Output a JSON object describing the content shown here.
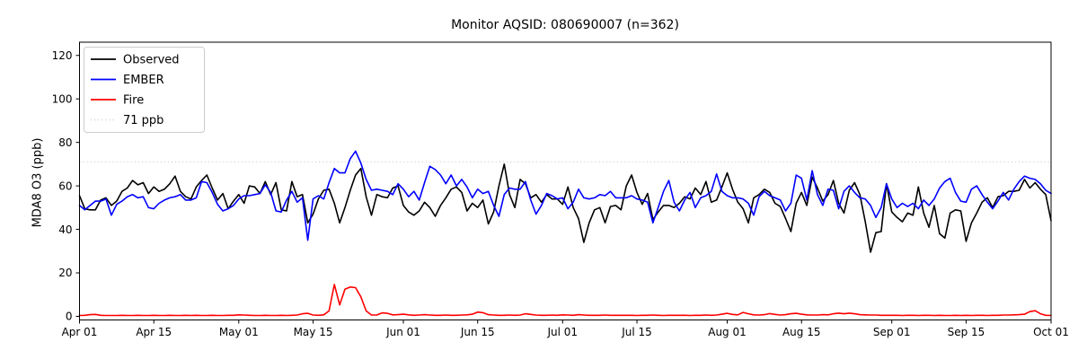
{
  "title": "Monitor AQSID: 080690007 (n=362)",
  "ylabel": "MDA8 O3 (ppb)",
  "chart_data": {
    "type": "line",
    "title": "Monitor AQSID: 080690007 (n=362)",
    "xlabel": "",
    "ylabel": "MDA8 O3 (ppb)",
    "x_unit": "date (daily, Apr 01 - Oct 01)",
    "n_days": 184,
    "ylim": [
      -2,
      126.3
    ],
    "yticks": [
      0,
      20,
      40,
      60,
      80,
      100,
      120
    ],
    "x_tick_labels": [
      "Apr 01",
      "Apr 15",
      "May 01",
      "May 15",
      "Jun 01",
      "Jun 15",
      "Jul 01",
      "Jul 15",
      "Aug 01",
      "Aug 15",
      "Sep 01",
      "Sep 15",
      "Oct 01"
    ],
    "x_tick_day_index": [
      0,
      14,
      30,
      44,
      61,
      75,
      91,
      105,
      122,
      136,
      153,
      167,
      183
    ],
    "grid": false,
    "legend_position": "upper left",
    "threshold": {
      "value": 71,
      "label": "71 ppb",
      "color": "#d3d3d3",
      "style": "dotted"
    },
    "series": [
      {
        "name": "Observed",
        "color": "#000000",
        "style": "solid",
        "values": [
          55.5,
          49.5,
          49,
          49,
          53.5,
          54.5,
          51,
          53,
          57.5,
          59,
          62.5,
          60.5,
          61.5,
          56.5,
          59.5,
          57.5,
          58.5,
          61,
          64.5,
          57.5,
          55,
          54,
          59.5,
          62.5,
          65,
          59,
          53.5,
          56.5,
          49.5,
          53,
          56,
          52,
          60,
          59.5,
          56.5,
          62,
          56,
          61.5,
          49,
          48.5,
          62,
          55,
          56,
          43,
          47,
          54,
          58,
          58.5,
          52,
          43,
          50,
          58,
          65,
          68,
          55,
          46.5,
          56,
          55,
          54.5,
          59,
          60,
          51,
          48,
          46.5,
          48.5,
          52.5,
          50,
          46,
          51,
          54.5,
          58.5,
          59.5,
          57,
          48.5,
          52,
          50,
          53.5,
          42.5,
          48,
          60,
          70,
          56,
          50,
          63,
          61,
          54.5,
          56,
          52.5,
          56,
          54,
          54,
          51.5,
          59.5,
          50,
          45,
          34,
          43,
          49,
          50,
          43,
          50.5,
          51,
          49,
          60,
          65,
          57,
          51.5,
          56.5,
          44.5,
          48,
          51,
          51,
          50,
          52,
          55,
          54,
          59,
          56,
          62,
          52.5,
          53.5,
          59.5,
          66,
          58.5,
          52.5,
          49.5,
          43,
          54.5,
          56,
          58.5,
          57,
          52,
          50.5,
          45,
          39,
          52,
          57,
          51,
          64,
          59,
          53,
          56,
          62.5,
          52,
          47.5,
          58,
          61.5,
          56,
          43.5,
          29.5,
          38.5,
          39,
          61,
          48,
          45.5,
          43.5,
          47.5,
          46.5,
          59.5,
          47.5,
          41,
          51,
          38,
          36,
          47.5,
          49,
          48.5,
          34.5,
          43,
          47.5,
          52.5,
          54.5,
          50,
          55,
          55.5,
          57.5,
          57.5,
          58,
          63,
          59,
          61.5,
          58.5,
          56,
          44
        ]
      },
      {
        "name": "EMBER",
        "color": "#0000ff",
        "style": "solid",
        "values": [
          51,
          49,
          51,
          53,
          53,
          54,
          46.5,
          51.5,
          53,
          55,
          56,
          54.5,
          55,
          50,
          49.5,
          52,
          53.5,
          54.5,
          55,
          56,
          53.5,
          53.5,
          54.5,
          62,
          61.5,
          57,
          51.5,
          48.5,
          49.5,
          51,
          54,
          55.5,
          55.5,
          56,
          56.5,
          60.5,
          57,
          48.5,
          48,
          53.5,
          57.5,
          52.5,
          54.5,
          35,
          54,
          55.5,
          54,
          61.5,
          68,
          66,
          66,
          72.5,
          76,
          70.5,
          63,
          58,
          58.5,
          58,
          57.5,
          56,
          61,
          58.5,
          55,
          57.5,
          53.5,
          61.5,
          69,
          67.5,
          65,
          61,
          65,
          60,
          63,
          59.5,
          54.5,
          58.5,
          56.5,
          57.5,
          51,
          46,
          56,
          59,
          58.5,
          58.5,
          62,
          53.5,
          47,
          51,
          56.5,
          55.5,
          54,
          54.5,
          49.5,
          52.5,
          58.5,
          54.5,
          54,
          54.5,
          56,
          55.5,
          57.5,
          54.5,
          54.5,
          54.5,
          55.5,
          54,
          53.5,
          52.5,
          43,
          50,
          57.5,
          62.5,
          52.5,
          48.5,
          53.5,
          57,
          50,
          54.5,
          55.5,
          57.5,
          65.5,
          57.5,
          55.5,
          54.5,
          54.5,
          54,
          52,
          46.5,
          55,
          57.5,
          55.5,
          54.5,
          53.5,
          48.5,
          52,
          65,
          63.5,
          53.5,
          67,
          56,
          51,
          58.5,
          58,
          49.5,
          57.5,
          60,
          57,
          54.5,
          54,
          51,
          45.5,
          50,
          61,
          54,
          50,
          52,
          50.5,
          52,
          49.5,
          53.5,
          51,
          54,
          59,
          62,
          63.5,
          57,
          53,
          52.5,
          58.5,
          60,
          56,
          52.5,
          49.5,
          53,
          57,
          53.5,
          58.5,
          62,
          64.5,
          63.5,
          63,
          61,
          58,
          56.5
        ]
      },
      {
        "name": "Fire",
        "color": "#ff0000",
        "style": "solid",
        "values": [
          0.4,
          0.5,
          0.8,
          0.9,
          0.5,
          0.4,
          0.4,
          0.4,
          0.5,
          0.4,
          0.4,
          0.5,
          0.4,
          0.4,
          0.5,
          0.4,
          0.4,
          0.5,
          0.4,
          0.4,
          0.5,
          0.4,
          0.5,
          0.4,
          0.4,
          0.5,
          0.4,
          0.4,
          0.5,
          0.5,
          0.7,
          0.6,
          0.5,
          0.4,
          0.4,
          0.5,
          0.4,
          0.4,
          0.5,
          0.4,
          0.5,
          0.6,
          1.2,
          1.4,
          0.6,
          0.5,
          0.7,
          2.5,
          14.7,
          5.3,
          12.5,
          13.5,
          13.2,
          9,
          2.5,
          0.6,
          0.6,
          1.6,
          1.4,
          0.7,
          0.8,
          1,
          0.7,
          0.5,
          0.6,
          0.8,
          0.6,
          0.5,
          0.5,
          0.6,
          0.5,
          0.5,
          0.6,
          0.7,
          1,
          2,
          1.7,
          0.8,
          0.6,
          0.5,
          0.5,
          0.6,
          0.5,
          0.6,
          1.2,
          0.9,
          0.6,
          0.5,
          0.5,
          0.6,
          0.5,
          0.7,
          0.6,
          0.5,
          0.8,
          0.6,
          0.5,
          0.5,
          0.5,
          0.6,
          0.5,
          0.5,
          0.5,
          0.5,
          0.5,
          0.4,
          0.5,
          0.5,
          0.6,
          0.5,
          0.4,
          0.5,
          0.5,
          0.5,
          0.5,
          0.4,
          0.5,
          0.5,
          0.6,
          0.5,
          0.6,
          1,
          1.4,
          0.9,
          0.7,
          1.8,
          1.2,
          0.7,
          0.6,
          0.8,
          1.3,
          0.9,
          0.6,
          0.8,
          1.2,
          1.4,
          1,
          0.7,
          0.6,
          0.6,
          0.8,
          0.7,
          1.2,
          1.5,
          1.2,
          1.5,
          1.2,
          0.8,
          0.7,
          0.6,
          0.6,
          0.5,
          0.5,
          0.5,
          0.5,
          0.4,
          0.5,
          0.5,
          0.4,
          0.5,
          0.5,
          0.4,
          0.5,
          0.4,
          0.4,
          0.5,
          0.4,
          0.5,
          0.4,
          0.5,
          0.5,
          0.4,
          0.5,
          0.5,
          0.6,
          0.6,
          0.7,
          0.8,
          1,
          2.2,
          2.6,
          1.2,
          0.5,
          0.4
        ]
      }
    ],
    "legend_entries": [
      "Observed",
      "EMBER",
      "Fire",
      "71 ppb"
    ]
  }
}
